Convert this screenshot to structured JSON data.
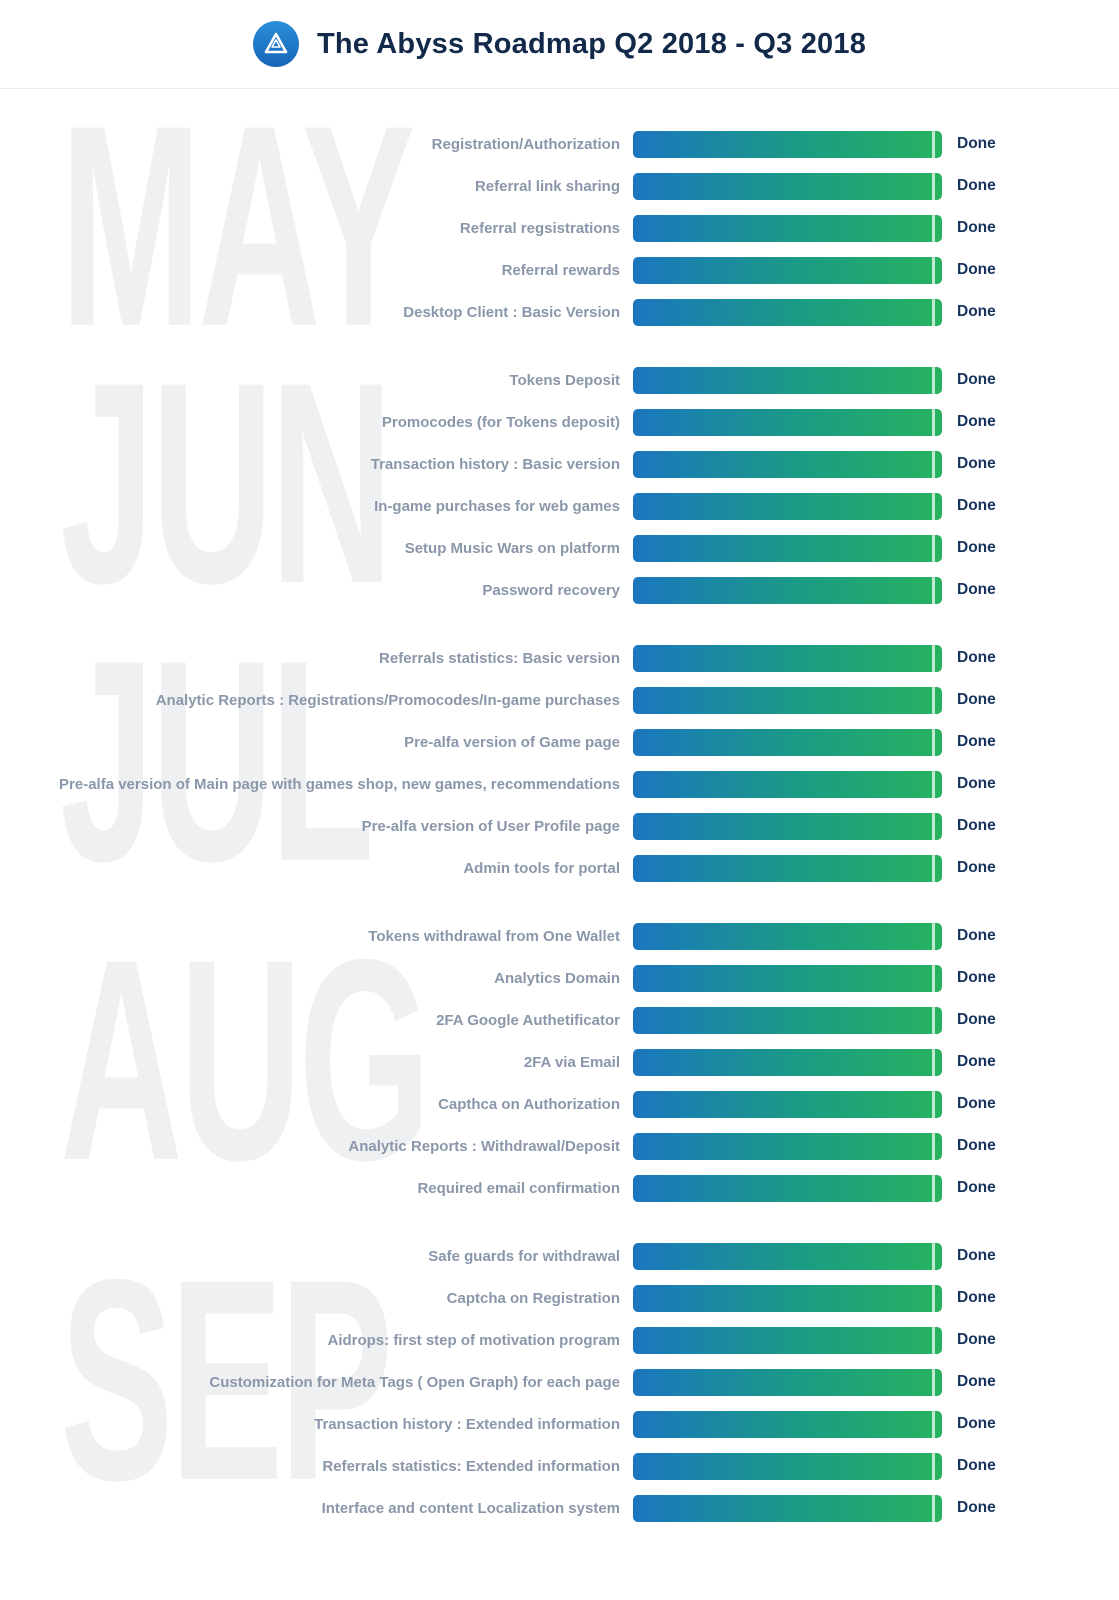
{
  "header": {
    "title": "The Abyss Roadmap Q2 2018 - Q3 2018"
  },
  "colors": {
    "bar_gradient_start": "#1b76c0",
    "bar_gradient_end": "#27b25f",
    "title_text": "#12294a",
    "task_label_text": "#8a97aa",
    "status_text": "#17335c",
    "watermark_text": "#eff0f2",
    "logo_background": "#1e7fd0"
  },
  "icons": {
    "logo": "abyss-triangle-logo"
  },
  "chart_data": {
    "type": "bar",
    "title": "The Abyss Roadmap Q2 2018 - Q3 2018",
    "orientation": "horizontal",
    "value_range": [
      0,
      100
    ],
    "note": "All bars are full-length progress bars marked Done (100%)",
    "sections": [
      {
        "month": "MAY",
        "tasks": [
          {
            "label": "Registration/Authorization",
            "status": "Done",
            "progress": 100
          },
          {
            "label": "Referral link sharing",
            "status": "Done",
            "progress": 100
          },
          {
            "label": "Referral regsistrations",
            "status": "Done",
            "progress": 100
          },
          {
            "label": "Referral rewards",
            "status": "Done",
            "progress": 100
          },
          {
            "label": "Desktop Client : Basic Version",
            "status": "Done",
            "progress": 100
          }
        ]
      },
      {
        "month": "JUN",
        "tasks": [
          {
            "label": "Tokens Deposit",
            "status": "Done",
            "progress": 100
          },
          {
            "label": "Promocodes (for Tokens deposit)",
            "status": "Done",
            "progress": 100
          },
          {
            "label": "Transaction history : Basic version",
            "status": "Done",
            "progress": 100
          },
          {
            "label": "In-game purchases for web games",
            "status": "Done",
            "progress": 100
          },
          {
            "label": "Setup Music Wars on platform",
            "status": "Done",
            "progress": 100
          },
          {
            "label": "Password recovery",
            "status": "Done",
            "progress": 100
          }
        ]
      },
      {
        "month": "JUL",
        "tasks": [
          {
            "label": "Referrals statistics: Basic version",
            "status": "Done",
            "progress": 100
          },
          {
            "label": "Analytic Reports : Registrations/Promocodes/In-game purchases",
            "status": "Done",
            "progress": 100
          },
          {
            "label": "Pre-alfa version of Game page",
            "status": "Done",
            "progress": 100
          },
          {
            "label": "Pre-alfa version of Main page with games shop, new games, recommendations",
            "status": "Done",
            "progress": 100
          },
          {
            "label": "Pre-alfa version of User Profile page",
            "status": "Done",
            "progress": 100
          },
          {
            "label": "Admin tools for portal",
            "status": "Done",
            "progress": 100
          }
        ]
      },
      {
        "month": "AUG",
        "tasks": [
          {
            "label": "Tokens withdrawal from One Wallet",
            "status": "Done",
            "progress": 100
          },
          {
            "label": "Analytics Domain",
            "status": "Done",
            "progress": 100
          },
          {
            "label": "2FA Google Authetificator",
            "status": "Done",
            "progress": 100
          },
          {
            "label": "2FA via Email",
            "status": "Done",
            "progress": 100
          },
          {
            "label": "Capthca on Authorization",
            "status": "Done",
            "progress": 100
          },
          {
            "label": "Analytic Reports : Withdrawal/Deposit",
            "status": "Done",
            "progress": 100
          },
          {
            "label": "Required email confirmation",
            "status": "Done",
            "progress": 100
          }
        ]
      },
      {
        "month": "SEP",
        "tasks": [
          {
            "label": "Safe guards for withdrawal",
            "status": "Done",
            "progress": 100
          },
          {
            "label": "Captcha on Registration",
            "status": "Done",
            "progress": 100
          },
          {
            "label": "Aidrops: first step of motivation program",
            "status": "Done",
            "progress": 100
          },
          {
            "label": "Customization for Meta Tags ( Open Graph) for each page",
            "status": "Done",
            "progress": 100
          },
          {
            "label": "Transaction history : Extended information",
            "status": "Done",
            "progress": 100
          },
          {
            "label": "Referrals statistics: Extended information",
            "status": "Done",
            "progress": 100
          },
          {
            "label": "Interface and content Localization system",
            "status": "Done",
            "progress": 100
          }
        ]
      }
    ]
  }
}
